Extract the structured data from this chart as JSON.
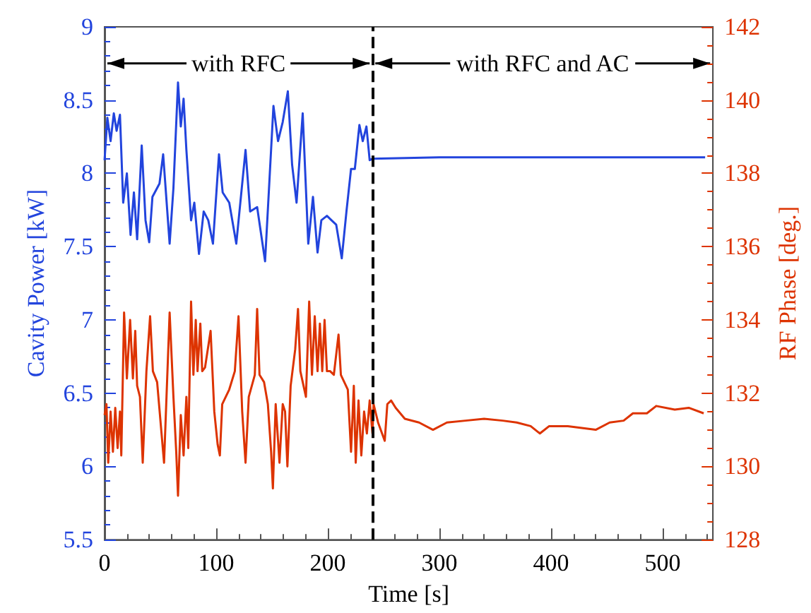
{
  "chart_data": {
    "type": "line",
    "xlabel": "Time [s]",
    "ylabel": "Cavity Power [kW]",
    "y2label": "RF Phase [deg.]",
    "xlim": [
      0,
      545
    ],
    "xticks": [
      0,
      100,
      200,
      300,
      400,
      500
    ],
    "ylim": [
      5.5,
      9
    ],
    "yticks": [
      5.5,
      6,
      6.5,
      7,
      7.5,
      8,
      8.5,
      9
    ],
    "y2lim": [
      128,
      142
    ],
    "y2ticks": [
      128,
      130,
      132,
      134,
      136,
      138,
      140,
      142
    ],
    "grid": false,
    "marker": "none",
    "line_style": "solid",
    "ref_lines": [
      {
        "axis": "x",
        "value": 240,
        "label": null,
        "color": "#000000",
        "line_style": "dashed"
      }
    ],
    "annotations": [
      {
        "text": "with RFC",
        "x": 240,
        "y": 8.75
      },
      {
        "text": "with RFC and AC",
        "x": 240,
        "y": 8.75
      }
    ],
    "series": [
      {
        "color": "#2244dd",
        "x": [
          0,
          2.5,
          5.4,
          8.3,
          10.8,
          13.8,
          16.7,
          20,
          23.3,
          26.3,
          29.2,
          33.3,
          36.7,
          40,
          42.9,
          49.2,
          52.5,
          58.3,
          61.7,
          65.8,
          68.3,
          70.8,
          73.3,
          77.5,
          80.4,
          84.6,
          88.8,
          92.9,
          97.1,
          102.5,
          105.8,
          111.7,
          118,
          126.3,
          130.4,
          136.7,
          143.8,
          151.3,
          155.4,
          159.6,
          164.2,
          168,
          172,
          177.5,
          182.5,
          186.7,
          190.8,
          194.2,
          199.2,
          203.3,
          207.5,
          212.5,
          216.7,
          220.8,
          224.2,
          228.3,
          231.3,
          234.6,
          237.5,
          240,
          300,
          400,
          538
        ],
        "values": [
          8.09,
          8.38,
          8.22,
          8.41,
          8.29,
          8.4,
          7.8,
          8,
          7.58,
          7.87,
          7.55,
          8.19,
          7.68,
          7.53,
          7.84,
          7.93,
          8.13,
          7.52,
          7.9,
          8.62,
          8.32,
          8.51,
          8.16,
          7.68,
          7.8,
          7.45,
          7.74,
          7.68,
          7.52,
          8.13,
          7.87,
          7.8,
          7.52,
          8.16,
          7.74,
          7.77,
          7.4,
          8.46,
          8.22,
          8.35,
          8.56,
          8.06,
          7.8,
          8.41,
          7.52,
          7.84,
          7.46,
          7.68,
          7.71,
          7.68,
          7.65,
          7.42,
          7.74,
          8.03,
          8.03,
          8.33,
          8.22,
          8.32,
          8.09,
          8.1,
          8.11,
          8.11,
          8.11
        ]
      },
      {
        "color": "#dd3300",
        "axis": "y2",
        "x": [
          0,
          1.7,
          3.3,
          5.4,
          7.5,
          9.6,
          11.7,
          13.8,
          15,
          17.5,
          20,
          22.9,
          25.4,
          27.5,
          29.2,
          31.7,
          34.2,
          37.5,
          40.8,
          43.3,
          47.1,
          53.3,
          58.3,
          61.7,
          64.2,
          65.8,
          68.3,
          70.8,
          73.3,
          75,
          77.5,
          79.6,
          81.7,
          83.3,
          85.8,
          87.5,
          90,
          95,
          98.3,
          101.3,
          103.3,
          105.4,
          111.7,
          116.7,
          120,
          123.3,
          126.3,
          129.2,
          134.6,
          136.7,
          138.8,
          142.9,
          146.3,
          149.2,
          150.8,
          153.3,
          156.7,
          159.6,
          161.7,
          163.8,
          166.7,
          170.8,
          173.3,
          175.4,
          180.4,
          183.3,
          185.8,
          188.3,
          190.8,
          192.9,
          195,
          197.1,
          199.2,
          202.1,
          205.4,
          209.6,
          211.7,
          217.9,
          220.8,
          223.3,
          225,
          227.5,
          230,
          232.5,
          235,
          237.5,
          240,
          241,
          245,
          251,
          253.3,
          256.7,
          260.8,
          269,
          281.7,
          294.2,
          306.7,
          323.3,
          340,
          356.7,
          369.2,
          381.7,
          390,
          398.3,
          415,
          427.5,
          440,
          452.5,
          465,
          473.3,
          485.8,
          494.2,
          510.8,
          523.3,
          536.7
        ],
        "values": [
          131.4,
          131.7,
          130.1,
          131.5,
          130.4,
          131.6,
          130.5,
          131.5,
          130.3,
          134.2,
          132.4,
          134,
          132.4,
          133.7,
          132.2,
          131.9,
          130.1,
          132.6,
          134.1,
          132.6,
          132.3,
          130.1,
          134.2,
          131.9,
          130.4,
          129.2,
          131.4,
          130.3,
          131.9,
          130.5,
          134.5,
          132.5,
          134,
          132.6,
          133.9,
          132.6,
          132.7,
          133.7,
          131.5,
          130.6,
          130.3,
          131.7,
          132.1,
          132.6,
          134.1,
          131.5,
          130.1,
          131.9,
          132.5,
          134.3,
          132.5,
          132.3,
          131.7,
          130.4,
          129.4,
          131.7,
          130.1,
          131.7,
          131.5,
          130,
          132.2,
          133.2,
          134.3,
          132.6,
          131.9,
          134.5,
          132.5,
          134.1,
          132.6,
          133.9,
          132.6,
          134,
          132.6,
          132.6,
          132.5,
          133.6,
          132.5,
          132.1,
          130.4,
          132.2,
          130.1,
          131.8,
          130.3,
          131.5,
          130.9,
          131.8,
          130.9,
          131.7,
          131.2,
          130.7,
          131.7,
          131.8,
          131.6,
          131.3,
          131.2,
          131,
          131.2,
          131.25,
          131.3,
          131.25,
          131.2,
          131.1,
          130.9,
          131.1,
          131.1,
          131.05,
          131,
          131.2,
          131.25,
          131.45,
          131.45,
          131.65,
          131.55,
          131.6,
          131.45
        ]
      }
    ]
  }
}
